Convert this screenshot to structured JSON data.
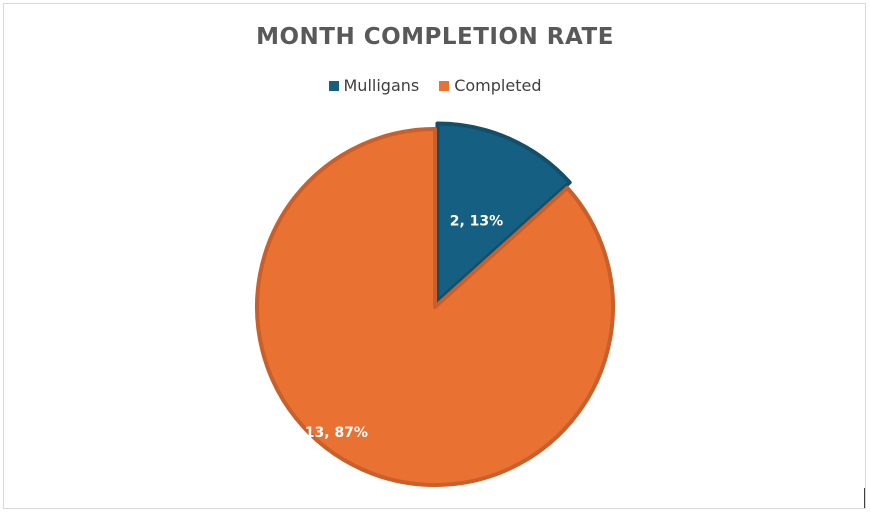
{
  "chart_data": {
    "type": "pie",
    "title": "MONTH COMPLETION RATE",
    "categories": [
      "Mulligans",
      "Completed"
    ],
    "values": [
      2,
      13
    ],
    "percentages": [
      13,
      87
    ],
    "data_labels": [
      "2, 13%",
      "13, 87%"
    ],
    "colors": [
      "#156082",
      "#E97132"
    ],
    "edge_colors": [
      "#124F6A",
      "#C95F2A"
    ],
    "legend_position": "top",
    "start_angle_deg": 0,
    "direction": "clockwise"
  }
}
